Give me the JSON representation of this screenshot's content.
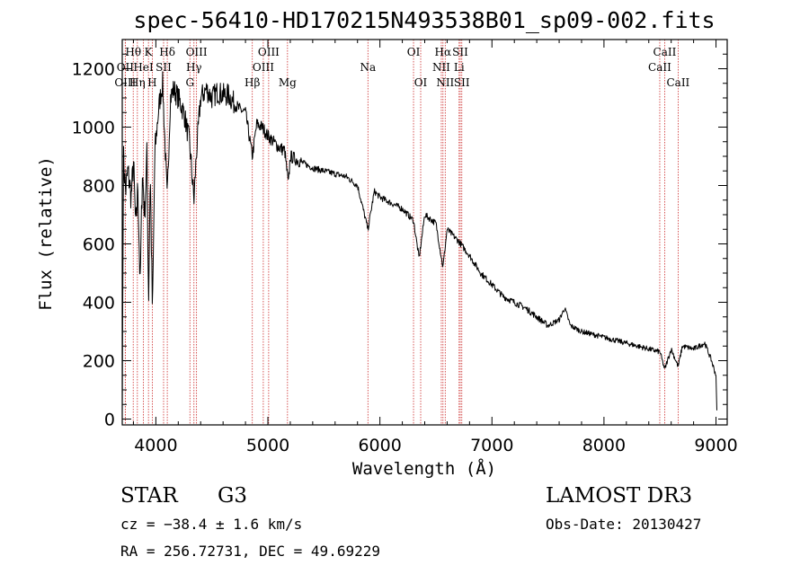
{
  "chart_data": {
    "type": "line",
    "title": "spec-56410-HD170215N493538B01_sp09-002.fits",
    "xlabel": "Wavelength (Å)",
    "ylabel": "Flux (relative)",
    "xlim": [
      3700,
      9100
    ],
    "ylim": [
      -20,
      1300
    ],
    "xticks": [
      4000,
      5000,
      6000,
      7000,
      8000,
      9000
    ],
    "yticks": [
      0,
      200,
      400,
      600,
      800,
      1000,
      1200
    ],
    "series": [
      {
        "name": "flux",
        "anchors": [
          [
            3700,
            20
          ],
          [
            3710,
            900
          ],
          [
            3730,
            780
          ],
          [
            3750,
            850
          ],
          [
            3780,
            760
          ],
          [
            3800,
            880
          ],
          [
            3820,
            650
          ],
          [
            3840,
            800
          ],
          [
            3860,
            450
          ],
          [
            3880,
            850
          ],
          [
            3900,
            700
          ],
          [
            3920,
            900
          ],
          [
            3935,
            400
          ],
          [
            3950,
            850
          ],
          [
            3970,
            350
          ],
          [
            3990,
            900
          ],
          [
            4010,
            1000
          ],
          [
            4030,
            1080
          ],
          [
            4060,
            1150
          ],
          [
            4101,
            750
          ],
          [
            4130,
            1100
          ],
          [
            4160,
            1130
          ],
          [
            4200,
            1100
          ],
          [
            4250,
            1050
          ],
          [
            4300,
            950
          ],
          [
            4340,
            750
          ],
          [
            4360,
            900
          ],
          [
            4400,
            1100
          ],
          [
            4450,
            1130
          ],
          [
            4500,
            1100
          ],
          [
            4550,
            1120
          ],
          [
            4600,
            1110
          ],
          [
            4650,
            1110
          ],
          [
            4700,
            1080
          ],
          [
            4750,
            1060
          ],
          [
            4800,
            1050
          ],
          [
            4861,
            900
          ],
          [
            4900,
            1010
          ],
          [
            4950,
            1000
          ],
          [
            5000,
            970
          ],
          [
            5050,
            950
          ],
          [
            5100,
            930
          ],
          [
            5150,
            920
          ],
          [
            5183,
            800
          ],
          [
            5200,
            900
          ],
          [
            5300,
            880
          ],
          [
            5400,
            860
          ],
          [
            5500,
            850
          ],
          [
            5600,
            840
          ],
          [
            5700,
            830
          ],
          [
            5800,
            800
          ],
          [
            5893,
            650
          ],
          [
            5950,
            780
          ],
          [
            6000,
            760
          ],
          [
            6100,
            740
          ],
          [
            6200,
            720
          ],
          [
            6300,
            680
          ],
          [
            6350,
            550
          ],
          [
            6400,
            700
          ],
          [
            6500,
            670
          ],
          [
            6563,
            520
          ],
          [
            6600,
            650
          ],
          [
            6700,
            610
          ],
          [
            6800,
            560
          ],
          [
            6900,
            500
          ],
          [
            7000,
            460
          ],
          [
            7100,
            420
          ],
          [
            7200,
            400
          ],
          [
            7300,
            380
          ],
          [
            7400,
            350
          ],
          [
            7500,
            320
          ],
          [
            7600,
            340
          ],
          [
            7650,
            380
          ],
          [
            7700,
            320
          ],
          [
            7800,
            300
          ],
          [
            7900,
            290
          ],
          [
            8000,
            280
          ],
          [
            8100,
            270
          ],
          [
            8200,
            260
          ],
          [
            8300,
            250
          ],
          [
            8400,
            240
          ],
          [
            8500,
            230
          ],
          [
            8542,
            170
          ],
          [
            8600,
            240
          ],
          [
            8662,
            180
          ],
          [
            8700,
            250
          ],
          [
            8800,
            240
          ],
          [
            8900,
            260
          ],
          [
            8960,
            200
          ],
          [
            9000,
            150
          ],
          [
            9010,
            0
          ]
        ]
      }
    ],
    "lines": [
      {
        "name": "Hθ",
        "wl": 3798,
        "row": 0
      },
      {
        "name": "OII",
        "wl": 3727,
        "row": 1
      },
      {
        "name": "OIII",
        "wl": 3727,
        "row": 2
      },
      {
        "name": "Hη",
        "wl": 3835,
        "row": 2
      },
      {
        "name": "HeI",
        "wl": 3889,
        "row": 1
      },
      {
        "name": "K",
        "wl": 3934,
        "row": 0
      },
      {
        "name": "H",
        "wl": 3968,
        "row": 2
      },
      {
        "name": "Hδ",
        "wl": 4102,
        "row": 0
      },
      {
        "name": "SII",
        "wl": 4069,
        "row": 1
      },
      {
        "name": "OIII",
        "wl": 4363,
        "row": 0
      },
      {
        "name": "Hγ",
        "wl": 4340,
        "row": 1
      },
      {
        "name": "G",
        "wl": 4304,
        "row": 2
      },
      {
        "name": "Hβ",
        "wl": 4861,
        "row": 2
      },
      {
        "name": "OIII",
        "wl": 5007,
        "row": 0
      },
      {
        "name": "OIII",
        "wl": 4959,
        "row": 1
      },
      {
        "name": "Mg",
        "wl": 5175,
        "row": 2
      },
      {
        "name": "Na",
        "wl": 5893,
        "row": 1
      },
      {
        "name": "OI",
        "wl": 6300,
        "row": 0
      },
      {
        "name": "OI",
        "wl": 6364,
        "row": 2
      },
      {
        "name": "Hα",
        "wl": 6563,
        "row": 0
      },
      {
        "name": "NII",
        "wl": 6548,
        "row": 1
      },
      {
        "name": "NII",
        "wl": 6583,
        "row": 2
      },
      {
        "name": "SII",
        "wl": 6717,
        "row": 0
      },
      {
        "name": "Li",
        "wl": 6707,
        "row": 1
      },
      {
        "name": "SII",
        "wl": 6731,
        "row": 2
      },
      {
        "name": "CaII",
        "wl": 8542,
        "row": 0
      },
      {
        "name": "CaII",
        "wl": 8498,
        "row": 1
      },
      {
        "name": "CaII",
        "wl": 8662,
        "row": 2
      }
    ]
  },
  "info": {
    "object_class": "STAR",
    "subclass": "G3",
    "survey": "LAMOST DR3",
    "cz": "cz = −38.4 ± 1.6 km/s",
    "obs_date": "Obs-Date: 20130427",
    "coords": "RA = 256.72731, DEC =  49.69229"
  },
  "colors": {
    "axis": "#000000",
    "spectrum": "#000000",
    "line_marker": "#cc2a2a"
  }
}
